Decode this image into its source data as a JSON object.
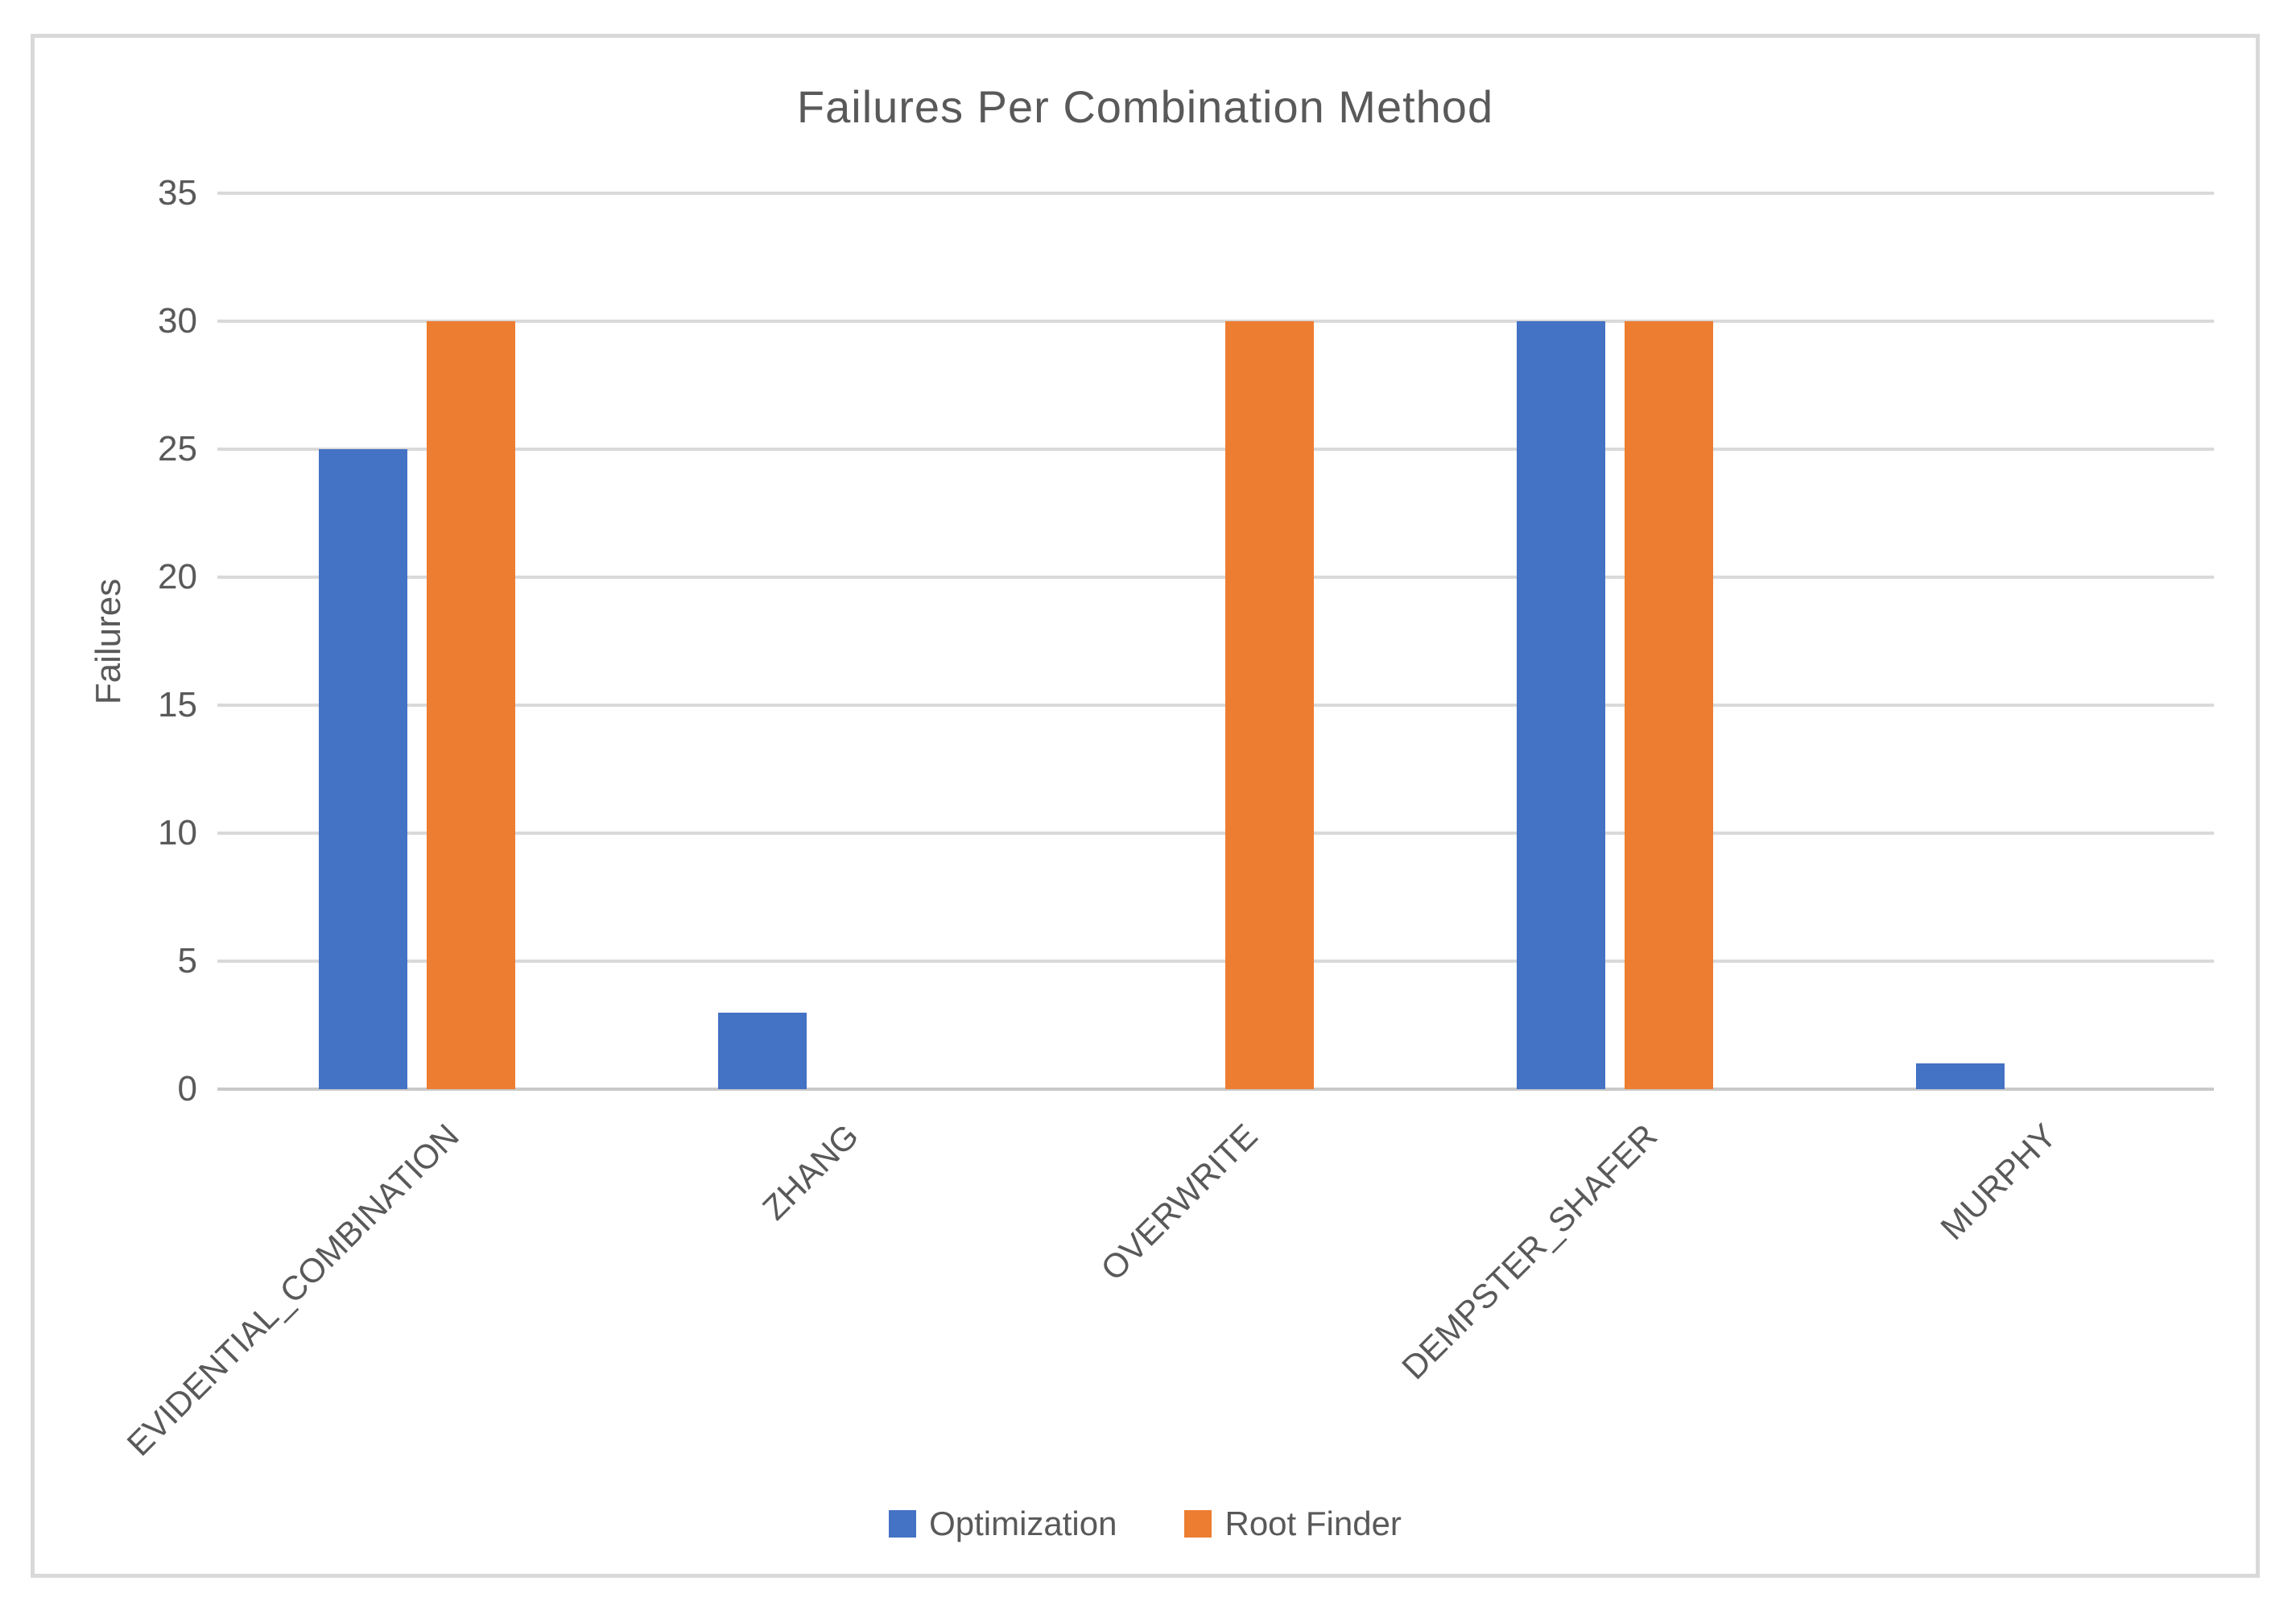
{
  "chart_data": {
    "type": "bar",
    "title": "Failures Per Combination Method",
    "xlabel": "",
    "ylabel": "Failures",
    "categories": [
      "EVIDENTIAL_COMBINATION",
      "ZHANG",
      "OVERWRITE",
      "DEMPSTER_SHAFER",
      "MURPHY"
    ],
    "series": [
      {
        "name": "Optimization",
        "color": "#4472C4",
        "values": [
          25,
          3,
          0,
          30,
          1
        ]
      },
      {
        "name": "Root Finder",
        "color": "#ED7D31",
        "values": [
          30,
          0,
          30,
          30,
          0
        ]
      }
    ],
    "ylim": [
      0,
      35
    ],
    "ytick_step": 5,
    "yticks": [
      0,
      5,
      10,
      15,
      20,
      25,
      30,
      35
    ],
    "grid": true,
    "legend_position": "bottom",
    "colors": {
      "text": "#595959",
      "gridline": "#D9D9D9",
      "frame_border": "#D9D9D9",
      "background": "#FFFFFF"
    }
  }
}
